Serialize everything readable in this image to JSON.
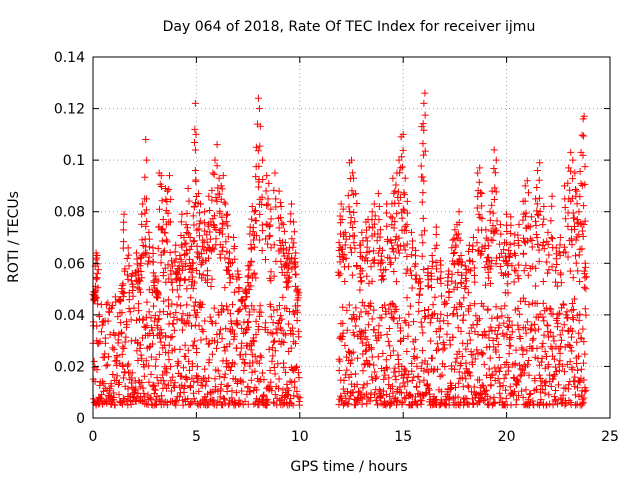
{
  "chart_data": {
    "type": "scatter",
    "title": "Day 064 of 2018, Rate Of TEC Index for receiver ijmu",
    "xlabel": "GPS time / hours",
    "ylabel": "ROTI / TECUs",
    "xlim": [
      0,
      25
    ],
    "ylim": [
      0,
      0.14
    ],
    "xticks": [
      0,
      5,
      10,
      15,
      20,
      25
    ],
    "yticks": [
      0,
      0.02,
      0.04,
      0.06,
      0.08,
      0.1,
      0.12,
      0.14
    ],
    "xtick_labels": [
      "0",
      "5",
      "10",
      "15",
      "20",
      "25"
    ],
    "ytick_labels": [
      "0",
      "0.02",
      "0.04",
      "0.06",
      "0.08",
      "0.1",
      "0.12",
      "0.14"
    ],
    "grid": true,
    "marker": "plus",
    "color": "#ff0000",
    "series": [
      {
        "name": "ROTI",
        "points": [
          [
            0.05,
            0.049
          ],
          [
            0.1,
            0.047
          ],
          [
            0.15,
            0.064
          ],
          [
            0.2,
            0.063
          ],
          [
            0.3,
            0.04
          ],
          [
            0.45,
            0.036
          ],
          [
            0.6,
            0.031
          ],
          [
            0.8,
            0.041
          ],
          [
            1.0,
            0.033
          ],
          [
            1.1,
            0.045
          ],
          [
            1.3,
            0.046
          ],
          [
            1.45,
            0.052
          ],
          [
            1.5,
            0.079
          ],
          [
            1.7,
            0.066
          ],
          [
            1.9,
            0.056
          ],
          [
            2.1,
            0.064
          ],
          [
            2.2,
            0.057
          ],
          [
            2.3,
            0.062
          ],
          [
            2.4,
            0.083
          ],
          [
            2.5,
            0.085
          ],
          [
            2.55,
            0.108
          ],
          [
            2.7,
            0.072
          ],
          [
            2.9,
            0.066
          ],
          [
            3.0,
            0.055
          ],
          [
            3.1,
            0.049
          ],
          [
            3.2,
            0.095
          ],
          [
            3.3,
            0.094
          ],
          [
            3.4,
            0.077
          ],
          [
            3.5,
            0.089
          ],
          [
            3.6,
            0.088
          ],
          [
            3.7,
            0.094
          ],
          [
            3.8,
            0.061
          ],
          [
            4.0,
            0.067
          ],
          [
            4.1,
            0.058
          ],
          [
            4.2,
            0.063
          ],
          [
            4.3,
            0.079
          ],
          [
            4.4,
            0.07
          ],
          [
            4.5,
            0.075
          ],
          [
            4.6,
            0.089
          ],
          [
            4.7,
            0.07
          ],
          [
            4.8,
            0.06
          ],
          [
            4.9,
            0.082
          ],
          [
            4.95,
            0.122
          ],
          [
            4.98,
            0.11
          ],
          [
            5.1,
            0.087
          ],
          [
            5.2,
            0.083
          ],
          [
            5.3,
            0.069
          ],
          [
            5.4,
            0.08
          ],
          [
            5.5,
            0.071
          ],
          [
            5.6,
            0.086
          ],
          [
            5.7,
            0.076
          ],
          [
            5.8,
            0.095
          ],
          [
            5.9,
            0.1
          ],
          [
            6.0,
            0.106
          ],
          [
            6.1,
            0.093
          ],
          [
            6.2,
            0.09
          ],
          [
            6.3,
            0.094
          ],
          [
            6.4,
            0.083
          ],
          [
            6.5,
            0.079
          ],
          [
            6.6,
            0.064
          ],
          [
            6.8,
            0.07
          ],
          [
            7.0,
            0.057
          ],
          [
            7.2,
            0.046
          ],
          [
            7.4,
            0.05
          ],
          [
            7.5,
            0.059
          ],
          [
            7.6,
            0.074
          ],
          [
            7.7,
            0.082
          ],
          [
            7.8,
            0.08
          ],
          [
            7.9,
            0.105
          ],
          [
            8.0,
            0.124
          ],
          [
            8.05,
            0.12
          ],
          [
            8.2,
            0.1
          ],
          [
            8.4,
            0.094
          ],
          [
            8.5,
            0.091
          ],
          [
            8.6,
            0.081
          ],
          [
            8.8,
            0.095
          ],
          [
            9.0,
            0.088
          ],
          [
            9.1,
            0.082
          ],
          [
            9.2,
            0.075
          ],
          [
            9.3,
            0.068
          ],
          [
            9.4,
            0.062
          ],
          [
            9.5,
            0.066
          ],
          [
            9.6,
            0.083
          ],
          [
            9.7,
            0.076
          ],
          [
            9.8,
            0.064
          ],
          [
            9.9,
            0.05
          ],
          [
            11.9,
            0.068
          ],
          [
            12.0,
            0.083
          ],
          [
            12.1,
            0.081
          ],
          [
            12.2,
            0.072
          ],
          [
            12.4,
            0.099
          ],
          [
            12.5,
            0.1
          ],
          [
            12.6,
            0.093
          ],
          [
            12.7,
            0.087
          ],
          [
            12.9,
            0.067
          ],
          [
            13.0,
            0.072
          ],
          [
            13.2,
            0.076
          ],
          [
            13.3,
            0.077
          ],
          [
            13.5,
            0.08
          ],
          [
            13.6,
            0.083
          ],
          [
            13.8,
            0.087
          ],
          [
            13.9,
            0.073
          ],
          [
            14.0,
            0.065
          ],
          [
            14.2,
            0.083
          ],
          [
            14.4,
            0.078
          ],
          [
            14.5,
            0.093
          ],
          [
            14.6,
            0.088
          ],
          [
            14.7,
            0.095
          ],
          [
            14.8,
            0.1
          ],
          [
            14.9,
            0.109
          ],
          [
            15.0,
            0.11
          ],
          [
            15.1,
            0.093
          ],
          [
            15.2,
            0.084
          ],
          [
            15.4,
            0.072
          ],
          [
            15.6,
            0.065
          ],
          [
            15.8,
            0.054
          ],
          [
            15.9,
            0.113
          ],
          [
            16.0,
            0.122
          ],
          [
            16.05,
            0.126
          ],
          [
            16.2,
            0.058
          ],
          [
            16.4,
            0.063
          ],
          [
            16.6,
            0.074
          ],
          [
            16.8,
            0.061
          ],
          [
            17.0,
            0.045
          ],
          [
            17.2,
            0.057
          ],
          [
            17.4,
            0.069
          ],
          [
            17.5,
            0.073
          ],
          [
            17.6,
            0.075
          ],
          [
            17.7,
            0.08
          ],
          [
            17.8,
            0.063
          ],
          [
            18.0,
            0.059
          ],
          [
            18.2,
            0.067
          ],
          [
            18.4,
            0.07
          ],
          [
            18.6,
            0.095
          ],
          [
            18.7,
            0.097
          ],
          [
            18.8,
            0.087
          ],
          [
            19.0,
            0.073
          ],
          [
            19.1,
            0.069
          ],
          [
            19.2,
            0.08
          ],
          [
            19.3,
            0.088
          ],
          [
            19.4,
            0.104
          ],
          [
            19.5,
            0.1
          ],
          [
            19.7,
            0.075
          ],
          [
            19.9,
            0.068
          ],
          [
            20.0,
            0.079
          ],
          [
            20.1,
            0.065
          ],
          [
            20.2,
            0.078
          ],
          [
            20.4,
            0.071
          ],
          [
            20.6,
            0.075
          ],
          [
            20.8,
            0.084
          ],
          [
            20.9,
            0.09
          ],
          [
            21.0,
            0.092
          ],
          [
            21.2,
            0.078
          ],
          [
            21.4,
            0.085
          ],
          [
            21.5,
            0.096
          ],
          [
            21.6,
            0.099
          ],
          [
            21.8,
            0.082
          ],
          [
            22.0,
            0.072
          ],
          [
            22.2,
            0.086
          ],
          [
            22.4,
            0.066
          ],
          [
            22.6,
            0.07
          ],
          [
            22.8,
            0.09
          ],
          [
            23.0,
            0.097
          ],
          [
            23.1,
            0.103
          ],
          [
            23.2,
            0.1
          ],
          [
            23.3,
            0.095
          ],
          [
            23.4,
            0.088
          ],
          [
            23.5,
            0.08
          ],
          [
            23.6,
            0.103
          ],
          [
            23.7,
            0.116
          ],
          [
            23.75,
            0.117
          ],
          [
            23.8,
            0.06
          ]
        ]
      }
    ],
    "dense_band": {
      "segments": [
        [
          0,
          10
        ],
        [
          11.9,
          23.85
        ]
      ],
      "ymin": 0.005,
      "ymax": 0.045
    }
  }
}
